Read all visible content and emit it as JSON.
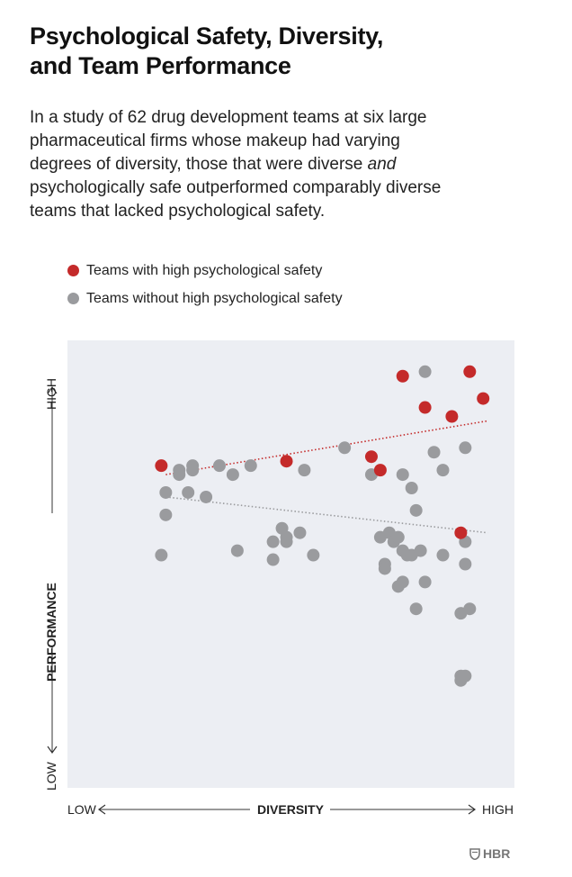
{
  "title": {
    "line1": "Psychological Safety, Diversity,",
    "line2": "and Team Performance"
  },
  "subtitle": {
    "line1": "In a study of 62 drug development teams at six large",
    "line2": "pharmaceutical firms whose makeup had varying",
    "line3_pre": "degrees of diversity, those that were diverse ",
    "line3_em": "and",
    "line4": "psychologically safe outperformed comparably diverse",
    "line5": "teams that lacked psychological safety."
  },
  "logo": {
    "text": "HBR"
  },
  "colors": {
    "high": "#c42a2a",
    "without": "#9a9b9e",
    "plot_bg": "#eceef3",
    "axis": "#333333"
  },
  "chart_data": {
    "type": "scatter",
    "title": "Psychological Safety, Diversity, and Team Performance",
    "xlabel": "DIVERSITY",
    "ylabel": "PERFORMANCE",
    "x_tick_low": "LOW",
    "x_tick_high": "HIGH",
    "y_tick_low": "LOW",
    "y_tick_high": "HIGH",
    "xlim": [
      0,
      100
    ],
    "ylim": [
      0,
      100
    ],
    "grid": false,
    "legend_position": "top-left",
    "series": [
      {
        "name": "Teams with high psychological safety",
        "color_key": "high",
        "points": [
          [
            21,
            72
          ],
          [
            49,
            73
          ],
          [
            68,
            74
          ],
          [
            70,
            71
          ],
          [
            75,
            92
          ],
          [
            80,
            85
          ],
          [
            86,
            83
          ],
          [
            90,
            93
          ],
          [
            93,
            87
          ],
          [
            88,
            57
          ]
        ],
        "trend": {
          "from": [
            22,
            70
          ],
          "to": [
            94,
            82
          ]
        }
      },
      {
        "name": "Teams without high psychological safety",
        "color_key": "without",
        "points": [
          [
            22,
            66
          ],
          [
            22,
            61
          ],
          [
            21,
            52
          ],
          [
            25,
            71
          ],
          [
            25,
            70
          ],
          [
            27,
            66
          ],
          [
            28,
            72
          ],
          [
            28,
            71
          ],
          [
            31,
            65
          ],
          [
            34,
            72
          ],
          [
            37,
            70
          ],
          [
            38,
            53
          ],
          [
            41,
            72
          ],
          [
            46,
            55
          ],
          [
            46,
            51
          ],
          [
            48,
            58
          ],
          [
            49,
            56
          ],
          [
            49,
            55
          ],
          [
            52,
            57
          ],
          [
            53,
            71
          ],
          [
            55,
            52
          ],
          [
            62,
            76
          ],
          [
            68,
            70
          ],
          [
            70,
            56
          ],
          [
            71,
            50
          ],
          [
            71,
            49
          ],
          [
            72,
            57
          ],
          [
            73,
            55
          ],
          [
            74,
            56
          ],
          [
            74,
            45
          ],
          [
            75,
            70
          ],
          [
            75,
            53
          ],
          [
            75,
            46
          ],
          [
            76,
            52
          ],
          [
            77,
            67
          ],
          [
            77,
            52
          ],
          [
            78,
            62
          ],
          [
            78,
            40
          ],
          [
            79,
            53
          ],
          [
            80,
            46
          ],
          [
            80,
            93
          ],
          [
            82,
            75
          ],
          [
            84,
            71
          ],
          [
            84,
            52
          ],
          [
            88,
            39
          ],
          [
            88,
            25
          ],
          [
            88,
            24
          ],
          [
            89,
            76
          ],
          [
            89,
            55
          ],
          [
            89,
            50
          ],
          [
            89,
            25
          ],
          [
            90,
            40
          ]
        ],
        "trend": {
          "from": [
            22,
            65
          ],
          "to": [
            94,
            57
          ]
        }
      }
    ]
  }
}
